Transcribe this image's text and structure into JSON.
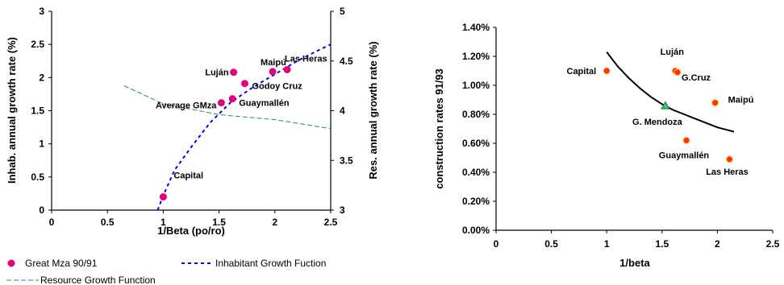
{
  "chart_data": [
    {
      "type": "scatter",
      "xlabel": "1/Beta (po/ro)",
      "ylabel": "Inhab. annual growth rate (%)",
      "y2label": "Res. annual growth rate (%)",
      "xlim": [
        0,
        2.5
      ],
      "ylim": [
        0,
        3
      ],
      "y2lim": [
        3,
        5
      ],
      "x_ticks": [
        "0",
        "0.5",
        "1",
        "1.5",
        "2",
        "2.5"
      ],
      "y_ticks": [
        "0",
        "0.5",
        "1",
        "1.5",
        "2",
        "2.5",
        "3"
      ],
      "y2_ticks": [
        "3",
        "3.5",
        "4",
        "4.5",
        "5"
      ],
      "grid": false,
      "legend_position": "bottom",
      "series": [
        {
          "name": "Great Mza 90/91",
          "color": "#e6007e",
          "marker": "circle",
          "points": [
            {
              "label": "Capital",
              "x": 1.0,
              "y": 0.2
            },
            {
              "label": "Average GMza",
              "x": 1.52,
              "y": 1.62
            },
            {
              "label": "Guaymallén",
              "x": 1.62,
              "y": 1.68
            },
            {
              "label": "Luján",
              "x": 1.63,
              "y": 2.08
            },
            {
              "label": "Godoy Cruz",
              "x": 1.73,
              "y": 1.91
            },
            {
              "label": "Maipú",
              "x": 1.98,
              "y": 2.09
            },
            {
              "label": "Las Heras",
              "x": 2.11,
              "y": 2.12
            }
          ]
        },
        {
          "name": "Inhabitant Growth Fuction",
          "color": "#0000ff",
          "axis": "left",
          "x": [
            0.95,
            1.0,
            1.1,
            1.25,
            1.42,
            1.6,
            1.8,
            2.0,
            2.2,
            2.4,
            2.5
          ],
          "y": [
            -0.05,
            0.22,
            0.6,
            0.95,
            1.32,
            1.62,
            1.85,
            2.05,
            2.25,
            2.42,
            2.5
          ]
        },
        {
          "name": "Resource Growth Function",
          "color": "#2e8b57",
          "axis": "right",
          "x": [
            0.65,
            1.0,
            1.5,
            2.0,
            2.5
          ],
          "y": [
            4.25,
            4.07,
            3.96,
            3.91,
            3.82
          ]
        }
      ],
      "legend": [
        "Great Mza 90/91",
        "Inhabitant Growth Fuction",
        "Resource Growth Function"
      ]
    },
    {
      "type": "scatter",
      "xlabel": "1/beta",
      "ylabel": "construction rates 91/93",
      "xlim": [
        0,
        2.5
      ],
      "ylim": [
        0,
        1.4
      ],
      "x_ticks": [
        "0",
        "0.5",
        "1",
        "1.5",
        "2",
        "2.5"
      ],
      "y_ticks": [
        "0.00%",
        "0.20%",
        "0.40%",
        "0.60%",
        "0.80%",
        "1.00%",
        "1.20%",
        "1.40%"
      ],
      "grid": false,
      "points": [
        {
          "label": "Capital",
          "x": 1.0,
          "y": 1.1,
          "color": "#ff3300",
          "marker": "circle"
        },
        {
          "label": "Luján",
          "x": 1.62,
          "y": 1.1,
          "color": "#ff3300",
          "marker": "circle"
        },
        {
          "label": "G.Cruz",
          "x": 1.64,
          "y": 1.09,
          "color": "#ff3300",
          "marker": "circle"
        },
        {
          "label": "Maipú",
          "x": 1.98,
          "y": 0.88,
          "color": "#ff3300",
          "marker": "circle"
        },
        {
          "label": "G. Mendoza",
          "x": 1.53,
          "y": 0.86,
          "color": "#33cc66",
          "marker": "triangle"
        },
        {
          "label": "Guaymallén",
          "x": 1.72,
          "y": 0.62,
          "color": "#ff3300",
          "marker": "circle"
        },
        {
          "label": "Las Heras",
          "x": 2.11,
          "y": 0.49,
          "color": "#ff3300",
          "marker": "circle"
        }
      ],
      "curve": {
        "color": "#000000",
        "x": [
          1.0,
          1.1,
          1.2,
          1.3,
          1.4,
          1.5,
          1.6,
          1.7,
          1.8,
          1.9,
          2.0,
          2.1,
          2.15
        ],
        "y": [
          1.23,
          1.13,
          1.05,
          0.98,
          0.92,
          0.87,
          0.83,
          0.8,
          0.77,
          0.74,
          0.71,
          0.69,
          0.68
        ]
      }
    }
  ]
}
